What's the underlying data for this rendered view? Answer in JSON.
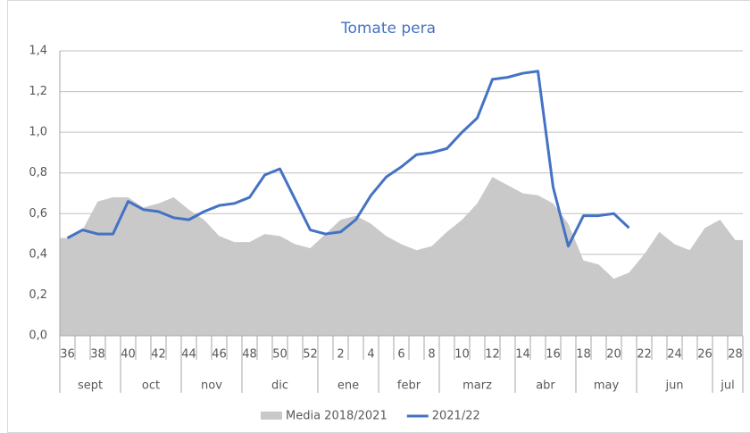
{
  "chart_data": {
    "type": "area-line",
    "title": "Tomate pera",
    "categories": [
      "36",
      null,
      "38",
      null,
      "40",
      null,
      "42",
      null,
      "44",
      null,
      "46",
      null,
      "48",
      null,
      "50",
      null,
      "52",
      null,
      "2",
      null,
      "4",
      null,
      "6",
      null,
      "8",
      null,
      "10",
      null,
      "12",
      null,
      "14",
      null,
      "16",
      null,
      "18",
      null,
      "20",
      null,
      "22",
      null,
      "24",
      null,
      "26",
      null,
      "28"
    ],
    "months": [
      "sept",
      "sept",
      "sept",
      "sept",
      "oct",
      "oct",
      "oct",
      "oct",
      "nov",
      "nov",
      "nov",
      "nov",
      "dic",
      "dic",
      "dic",
      "dic",
      "dic",
      "ene",
      "ene",
      "ene",
      "ene",
      "febr",
      "febr",
      "febr",
      "febr",
      "marz",
      "marz",
      "marz",
      "marz",
      "marz",
      "abr",
      "abr",
      "abr",
      "abr",
      "may",
      "may",
      "may",
      "may",
      "jun",
      "jun",
      "jun",
      "jun",
      "jun",
      "jul",
      "jul"
    ],
    "series": [
      {
        "name": "Media 2018/2021",
        "kind": "area",
        "color": "#c9c9c9",
        "values": [
          0.48,
          0.52,
          0.66,
          0.68,
          0.68,
          0.63,
          0.65,
          0.68,
          0.62,
          0.57,
          0.49,
          0.46,
          0.46,
          0.5,
          0.49,
          0.45,
          0.43,
          0.5,
          0.57,
          0.59,
          0.55,
          0.49,
          0.45,
          0.42,
          0.44,
          0.51,
          0.57,
          0.65,
          0.78,
          0.74,
          0.7,
          0.69,
          0.65,
          0.55,
          0.37,
          0.35,
          0.28,
          0.31,
          0.4,
          0.51,
          0.45,
          0.42,
          0.53,
          0.57,
          0.47
        ]
      },
      {
        "name": "2021/22",
        "kind": "line",
        "color": "#4472c4",
        "values": [
          0.48,
          0.52,
          0.5,
          0.5,
          0.66,
          0.62,
          0.61,
          0.58,
          0.57,
          0.61,
          0.64,
          0.65,
          0.68,
          0.79,
          0.82,
          0.67,
          0.52,
          0.5,
          0.51,
          0.57,
          0.69,
          0.78,
          0.83,
          0.89,
          0.9,
          0.92,
          1.0,
          1.07,
          1.26,
          1.27,
          1.29,
          1.3,
          0.73,
          0.44,
          0.59,
          0.59,
          0.6,
          0.53,
          null,
          null,
          null,
          null,
          null,
          null,
          null
        ]
      }
    ],
    "ylim": [
      0,
      1.4
    ],
    "yticks": [
      {
        "value": 0,
        "label": "0,0"
      },
      {
        "value": 0.2,
        "label": "0,2"
      },
      {
        "value": 0.4,
        "label": "0,4"
      },
      {
        "value": 0.6,
        "label": "0,6"
      },
      {
        "value": 0.8,
        "label": "0,8"
      },
      {
        "value": 1.0,
        "label": "1,0"
      },
      {
        "value": 1.2,
        "label": "1,2"
      },
      {
        "value": 1.4,
        "label": "1,4"
      }
    ],
    "grid": true,
    "legend": "bottom"
  }
}
